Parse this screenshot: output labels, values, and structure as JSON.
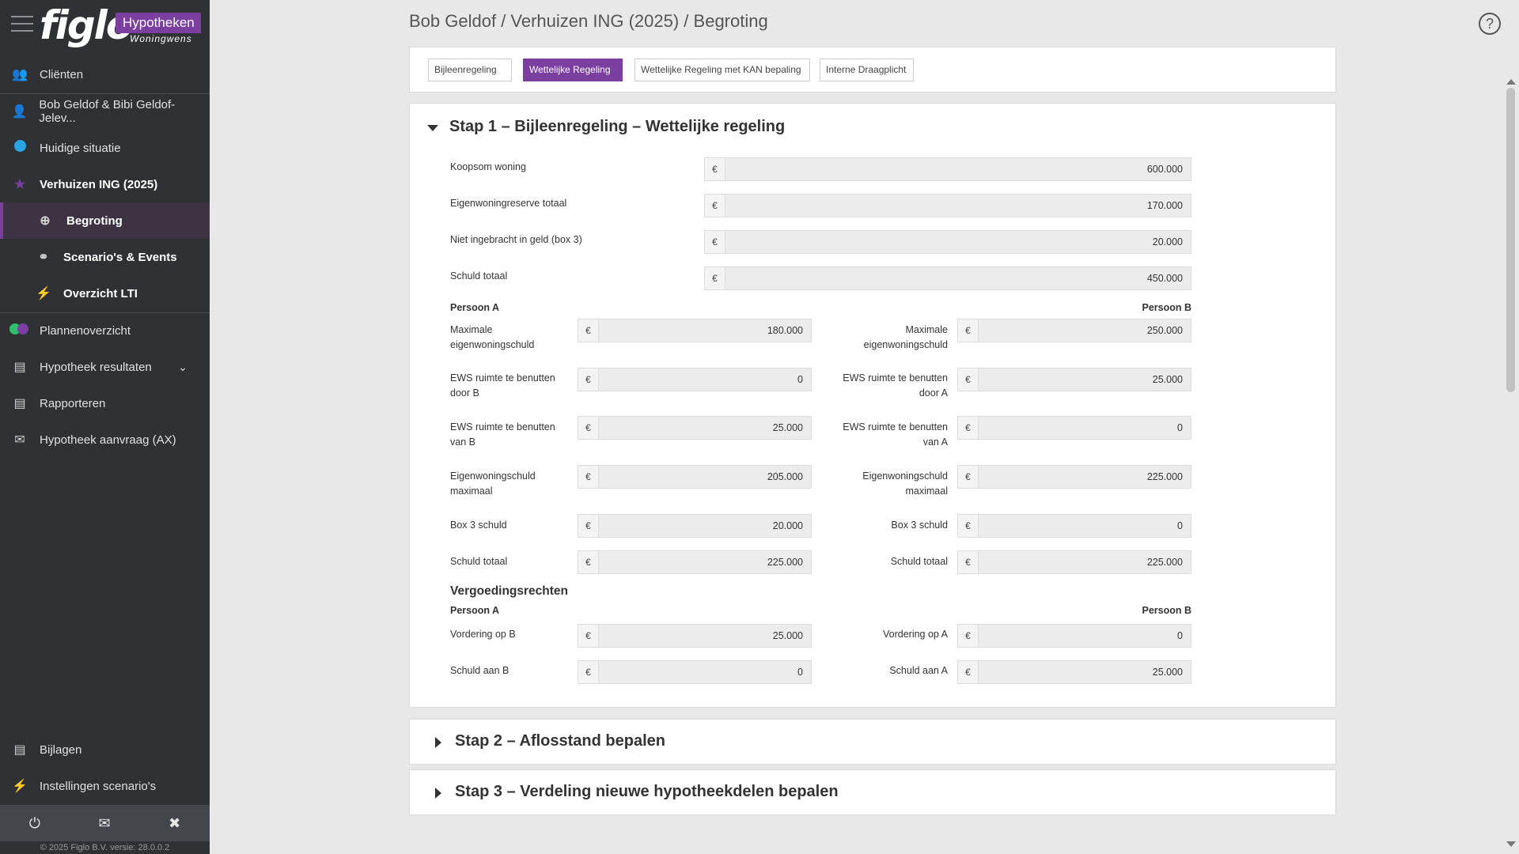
{
  "brand": {
    "name": "figlo",
    "badge": "Hypotheken",
    "sub": "Woningwens"
  },
  "sidebar": {
    "items": [
      {
        "label": "Cliënten",
        "icon": "users-icon"
      },
      {
        "label": "Bob Geldof & Bibi Geldof-Jelev...",
        "icon": "user-icon"
      },
      {
        "label": "Huidige situatie",
        "icon": "dot-icon"
      },
      {
        "label": "Verhuizen ING (2025)",
        "icon": "star-icon"
      },
      {
        "label": "Begroting",
        "icon": "crosshair-icon"
      },
      {
        "label": "Scenario's & Events",
        "icon": "glasses-icon"
      },
      {
        "label": "Overzicht LTI",
        "icon": "bolt-icon"
      },
      {
        "label": "Plannenoverzicht",
        "icon": "toggle-icon"
      },
      {
        "label": "Hypotheek resultaten",
        "icon": "chart-icon"
      },
      {
        "label": "Rapporteren",
        "icon": "document-icon"
      },
      {
        "label": "Hypotheek aanvraag (AX)",
        "icon": "envelope-open-icon"
      },
      {
        "label": "Bijlagen",
        "icon": "file-icon"
      },
      {
        "label": "Instellingen scenario's",
        "icon": "bolt-icon"
      }
    ],
    "copyright": "© 2025 Figlo B.V. versie: 28.0.0.2"
  },
  "header": {
    "title": "Bob Geldof / Verhuizen ING (2025) / Begroting"
  },
  "tabs": [
    "Bijleenregeling",
    "Wettelijke Regeling",
    "Wettelijke Regeling met KAN bepaling",
    "Interne Draagplicht"
  ],
  "step1": {
    "title": "Stap 1 – Bijleenregeling – Wettelijke regeling",
    "currency": "€",
    "fields": [
      {
        "label": "Koopsom woning",
        "value": "600.000"
      },
      {
        "label": "Eigenwoningreserve totaal",
        "value": "170.000"
      },
      {
        "label": "Niet ingebracht in geld (box 3)",
        "value": "20.000"
      },
      {
        "label": "Schuld totaal",
        "value": "450.000"
      }
    ],
    "personA": "Persoon A",
    "personB": "Persoon B",
    "rowsA": [
      {
        "label": "Maximale eigenwoningschuld",
        "value": "180.000"
      },
      {
        "label": "EWS ruimte te benutten door B",
        "value": "0"
      },
      {
        "label": "EWS ruimte te benutten van B",
        "value": "25.000"
      },
      {
        "label": "Eigenwoningschuld maximaal",
        "value": "205.000"
      },
      {
        "label": "Box 3 schuld",
        "value": "20.000"
      },
      {
        "label": "Schuld totaal",
        "value": "225.000"
      }
    ],
    "rowsB": [
      {
        "label": "Maximale eigenwoningschuld",
        "value": "250.000"
      },
      {
        "label": "EWS ruimte te benutten door A",
        "value": "25.000"
      },
      {
        "label": "EWS ruimte te benutten van A",
        "value": "0"
      },
      {
        "label": "Eigenwoningschuld maximaal",
        "value": "225.000"
      },
      {
        "label": "Box 3 schuld",
        "value": "0"
      },
      {
        "label": "Schuld totaal",
        "value": "225.000"
      }
    ],
    "vergoeding": {
      "title": "Vergoedingsrechten",
      "rowsA": [
        {
          "label": "Vordering op B",
          "value": "25.000"
        },
        {
          "label": "Schuld aan B",
          "value": "0"
        }
      ],
      "rowsB": [
        {
          "label": "Vordering op A",
          "value": "0"
        },
        {
          "label": "Schuld aan A",
          "value": "25.000"
        }
      ]
    }
  },
  "step2": {
    "title": "Stap 2 – Aflosstand bepalen"
  },
  "step3": {
    "title": "Stap 3 – Verdeling nieuwe hypotheekdelen bepalen"
  },
  "colors": {
    "accent": "#7b3fa0",
    "sidebar": "#2f3135",
    "dot": "#2aa4e6"
  }
}
